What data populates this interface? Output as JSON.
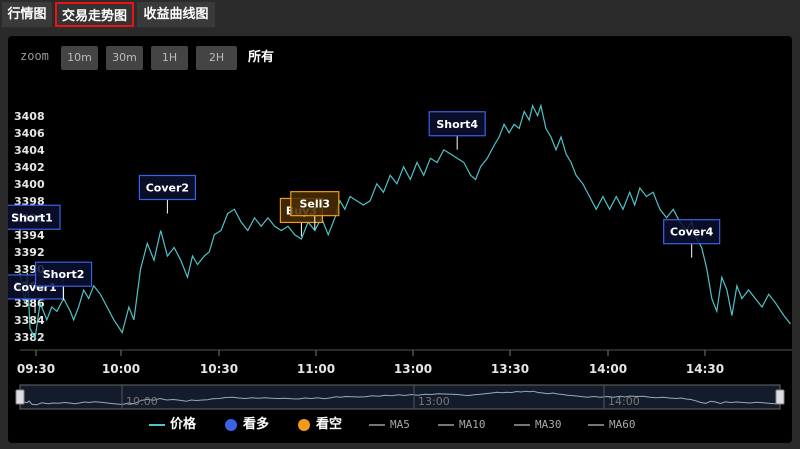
{
  "tabs": [
    {
      "label": "行情图"
    },
    {
      "label": "交易走势图"
    },
    {
      "label": "收益曲线图"
    }
  ],
  "zoom": {
    "label": "zoom",
    "buttons": [
      "10m",
      "30m",
      "1H",
      "2H",
      "所有"
    ]
  },
  "legend": {
    "price": "价格",
    "long": "看多",
    "short": "看空",
    "ma5": "MA5",
    "ma10": "MA10",
    "ma30": "MA30",
    "ma60": "MA60"
  },
  "colors": {
    "price_line": "#4fc3c8",
    "long": "#3a62e6",
    "short": "#f29b1c",
    "active_tab_border": "#e11111"
  },
  "chart_data": {
    "type": "line",
    "y_ticks": [
      3382,
      3384,
      3386,
      3388,
      3390,
      3392,
      3394,
      3396,
      3398,
      3400,
      3402,
      3404,
      3406,
      3408
    ],
    "ylim": [
      3381.5,
      3409.5
    ],
    "x_ticks": [
      "09:30",
      "10:00",
      "10:30",
      "11:00",
      "13:00",
      "13:30",
      "14:00",
      "14:30"
    ],
    "navigator_ticks": [
      "10:00",
      "13:00",
      "14:00"
    ],
    "grid": false,
    "series": [
      {
        "name": "价格",
        "points": [
          [
            0.0,
            3389.5
          ],
          [
            0.15,
            3386.0
          ],
          [
            0.22,
            3389.5
          ],
          [
            0.3,
            3383.0
          ],
          [
            0.45,
            3381.8
          ],
          [
            0.6,
            3386.0
          ],
          [
            0.8,
            3384.0
          ],
          [
            0.95,
            3385.5
          ],
          [
            1.1,
            3385.0
          ],
          [
            1.3,
            3386.5
          ],
          [
            1.5,
            3385.0
          ],
          [
            1.6,
            3384.0
          ],
          [
            1.75,
            3385.5
          ],
          [
            1.9,
            3387.5
          ],
          [
            2.05,
            3386.5
          ],
          [
            2.2,
            3388.0
          ],
          [
            2.4,
            3387.0
          ],
          [
            2.6,
            3385.5
          ],
          [
            2.8,
            3384.0
          ],
          [
            3.05,
            3382.5
          ],
          [
            3.25,
            3385.5
          ],
          [
            3.4,
            3384.0
          ],
          [
            3.6,
            3390.0
          ],
          [
            3.8,
            3393.0
          ],
          [
            4.0,
            3391.0
          ],
          [
            4.2,
            3394.5
          ],
          [
            4.4,
            3391.5
          ],
          [
            4.6,
            3392.5
          ],
          [
            4.8,
            3391.0
          ],
          [
            5.0,
            3389.0
          ],
          [
            5.15,
            3391.5
          ],
          [
            5.3,
            3390.5
          ],
          [
            5.5,
            3391.5
          ],
          [
            5.65,
            3392.0
          ],
          [
            5.8,
            3394.0
          ],
          [
            6.0,
            3394.5
          ],
          [
            6.2,
            3396.5
          ],
          [
            6.4,
            3397.0
          ],
          [
            6.6,
            3395.5
          ],
          [
            6.8,
            3394.5
          ],
          [
            7.0,
            3396.0
          ],
          [
            7.2,
            3395.0
          ],
          [
            7.4,
            3396.0
          ],
          [
            7.6,
            3395.0
          ],
          [
            7.8,
            3394.5
          ],
          [
            8.0,
            3395.0
          ],
          [
            8.2,
            3394.0
          ],
          [
            8.4,
            3393.5
          ],
          [
            8.6,
            3395.5
          ],
          [
            8.8,
            3394.5
          ],
          [
            9.0,
            3396.0
          ],
          [
            9.2,
            3394.0
          ],
          [
            9.4,
            3396.0
          ],
          [
            9.55,
            3398.0
          ],
          [
            9.7,
            3397.0
          ],
          [
            9.85,
            3398.5
          ],
          [
            10.05,
            3398.0
          ],
          [
            10.25,
            3397.5
          ],
          [
            10.45,
            3398.0
          ],
          [
            10.65,
            3400.0
          ],
          [
            10.85,
            3399.0
          ],
          [
            11.05,
            3401.0
          ],
          [
            11.25,
            3400.0
          ],
          [
            11.45,
            3402.0
          ],
          [
            11.65,
            3400.5
          ],
          [
            11.85,
            3402.5
          ],
          [
            12.05,
            3401.0
          ],
          [
            12.25,
            3403.0
          ],
          [
            12.45,
            3402.5
          ],
          [
            12.65,
            3404.0
          ],
          [
            12.85,
            3403.5
          ],
          [
            13.05,
            3403.0
          ],
          [
            13.25,
            3402.5
          ],
          [
            13.45,
            3401.0
          ],
          [
            13.6,
            3400.5
          ],
          [
            13.75,
            3402.0
          ],
          [
            13.95,
            3403.0
          ],
          [
            14.15,
            3404.5
          ],
          [
            14.3,
            3405.5
          ],
          [
            14.45,
            3407.0
          ],
          [
            14.6,
            3406.0
          ],
          [
            14.75,
            3407.0
          ],
          [
            14.9,
            3406.5
          ],
          [
            15.05,
            3408.5
          ],
          [
            15.2,
            3407.5
          ],
          [
            15.3,
            3409.2
          ],
          [
            15.45,
            3408.0
          ],
          [
            15.55,
            3409.2
          ],
          [
            15.7,
            3406.5
          ],
          [
            15.85,
            3405.5
          ],
          [
            16.0,
            3404.0
          ],
          [
            16.15,
            3405.5
          ],
          [
            16.3,
            3403.5
          ],
          [
            16.45,
            3402.5
          ],
          [
            16.6,
            3401.0
          ],
          [
            16.8,
            3400.0
          ],
          [
            17.0,
            3398.5
          ],
          [
            17.2,
            3397.0
          ],
          [
            17.4,
            3398.5
          ],
          [
            17.6,
            3397.0
          ],
          [
            17.8,
            3398.5
          ],
          [
            18.0,
            3397.0
          ],
          [
            18.2,
            3399.0
          ],
          [
            18.35,
            3397.5
          ],
          [
            18.5,
            3399.5
          ],
          [
            18.7,
            3398.5
          ],
          [
            18.9,
            3399.0
          ],
          [
            19.1,
            3397.0
          ],
          [
            19.3,
            3396.0
          ],
          [
            19.5,
            3397.0
          ],
          [
            19.7,
            3395.5
          ],
          [
            19.9,
            3394.5
          ],
          [
            20.05,
            3395.5
          ],
          [
            20.2,
            3393.5
          ],
          [
            20.35,
            3392.5
          ],
          [
            20.5,
            3390.0
          ],
          [
            20.65,
            3386.5
          ],
          [
            20.8,
            3385.0
          ],
          [
            20.95,
            3389.0
          ],
          [
            21.1,
            3387.5
          ],
          [
            21.25,
            3384.5
          ],
          [
            21.4,
            3388.0
          ],
          [
            21.55,
            3386.5
          ],
          [
            21.75,
            3387.5
          ],
          [
            21.95,
            3386.5
          ],
          [
            22.15,
            3385.5
          ],
          [
            22.35,
            3387.0
          ],
          [
            22.55,
            3386.0
          ],
          [
            22.8,
            3384.5
          ],
          [
            23.0,
            3383.5
          ]
        ]
      }
    ],
    "markers": [
      {
        "label": "Short1",
        "type": "short",
        "x": 0.0,
        "y": 3393.0
      },
      {
        "label": "Cover1",
        "type": "cover",
        "x": 0.45,
        "y": 3384.8
      },
      {
        "label": "Short2",
        "type": "short",
        "x": 1.3,
        "y": 3386.3
      },
      {
        "label": "Cover2",
        "type": "cover",
        "x": 4.4,
        "y": 3396.5
      },
      {
        "label": "Buy3",
        "type": "buy",
        "x": 8.4,
        "y": 3393.8
      },
      {
        "label": "Sell3",
        "type": "sell",
        "x": 8.8,
        "y": 3394.6
      },
      {
        "label": "Short4",
        "type": "short",
        "x": 13.05,
        "y": 3404.0
      },
      {
        "label": "Cover4",
        "type": "cover",
        "x": 20.05,
        "y": 3391.3
      }
    ]
  }
}
